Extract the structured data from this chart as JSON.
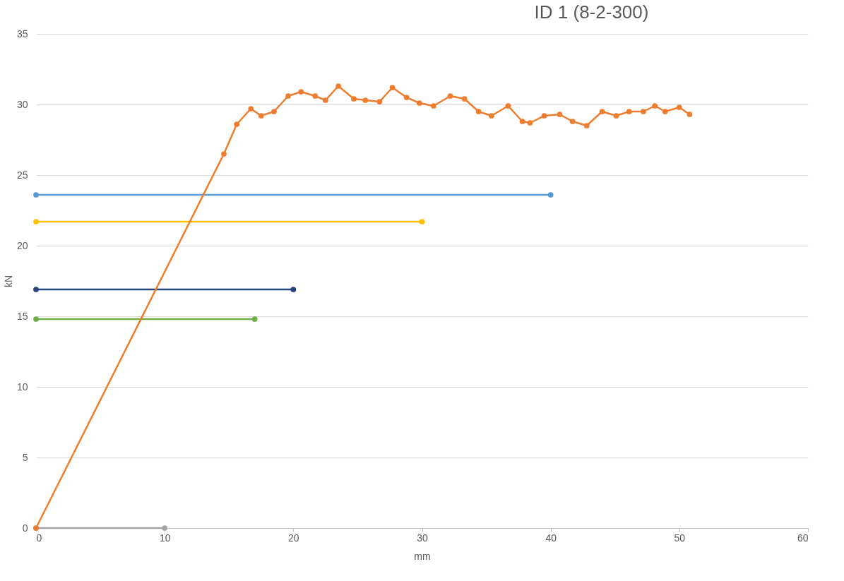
{
  "chart_data": {
    "type": "line",
    "title": "ID 1 (8-2-300)",
    "xlabel": "mm",
    "ylabel": "kN",
    "xlim": [
      0,
      60
    ],
    "xticks": [
      0,
      10,
      20,
      30,
      40,
      50,
      60
    ],
    "ylim": [
      0,
      35
    ],
    "yticks": [
      0,
      5,
      10,
      15,
      20,
      25,
      30,
      35
    ],
    "grid": "y",
    "legend": false,
    "marker": "circle",
    "line_style": "solid",
    "series": [
      {
        "color": "#5b9bd5",
        "x": [
          0,
          40
        ],
        "values": [
          23.6,
          23.6
        ]
      },
      {
        "color": "#ffc000",
        "x": [
          0,
          30
        ],
        "values": [
          21.7,
          21.7
        ]
      },
      {
        "color": "#264478",
        "x": [
          0,
          20
        ],
        "values": [
          16.9,
          16.9
        ]
      },
      {
        "color": "#70ad47",
        "x": [
          0,
          17
        ],
        "values": [
          14.8,
          14.8
        ]
      },
      {
        "color": "#a5a5a5",
        "x": [
          0,
          10
        ],
        "values": [
          0,
          0
        ]
      },
      {
        "color": "#ed7d31",
        "x": [
          0,
          14.6,
          15.6,
          16.7,
          17.5,
          18.5,
          19.6,
          20.6,
          21.7,
          22.5,
          23.5,
          24.7,
          25.6,
          26.7,
          27.7,
          28.8,
          29.8,
          30.9,
          32.2,
          33.3,
          34.4,
          35.4,
          36.7,
          37.8,
          38.4,
          39.5,
          40.7,
          41.7,
          42.8,
          44.0,
          45.1,
          46.1,
          47.2,
          48.1,
          48.9,
          50.0,
          50.8
        ],
        "values": [
          0,
          26.5,
          28.6,
          29.7,
          29.2,
          29.5,
          30.6,
          30.9,
          30.6,
          30.3,
          31.3,
          30.4,
          30.3,
          30.2,
          31.2,
          30.5,
          30.1,
          29.9,
          30.6,
          30.4,
          29.5,
          29.2,
          29.9,
          28.8,
          28.7,
          29.2,
          29.3,
          28.8,
          28.5,
          29.5,
          29.2,
          29.5,
          29.5,
          29.9,
          29.5,
          29.8,
          29.3
        ]
      }
    ]
  }
}
